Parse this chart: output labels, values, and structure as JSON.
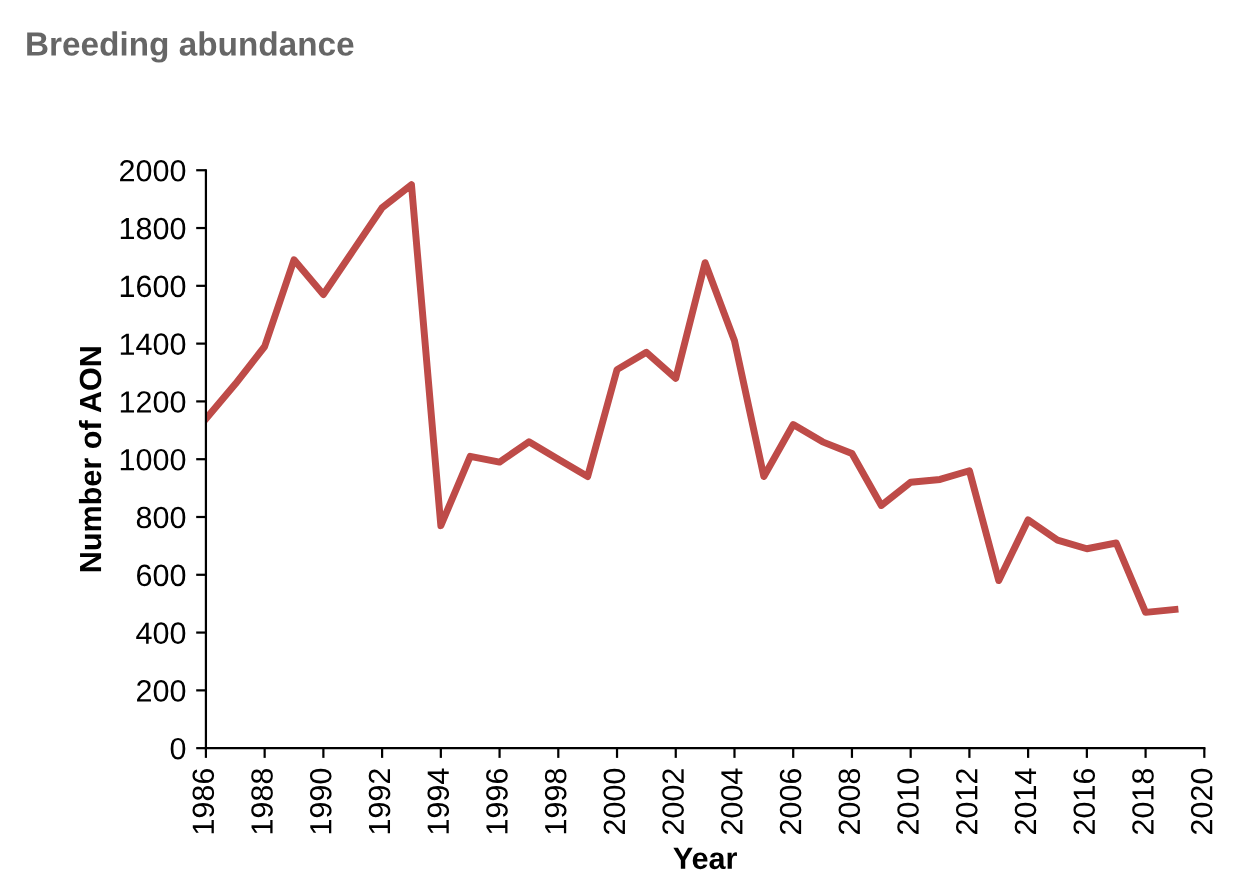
{
  "chart_data": {
    "type": "line",
    "title": "Breeding abundance",
    "xlabel": "Year",
    "ylabel": "Number of AON",
    "x": [
      1986,
      1987,
      1988,
      1989,
      1990,
      1991,
      1992,
      1993,
      1994,
      1995,
      1996,
      1997,
      1998,
      1999,
      2000,
      2001,
      2002,
      2003,
      2004,
      2005,
      2006,
      2007,
      2008,
      2009,
      2010,
      2011,
      2012,
      2013,
      2014,
      2015,
      2016,
      2017,
      2018,
      2019
    ],
    "series": [
      {
        "color": "#be4b48",
        "values": [
          1140,
          1260,
          1390,
          1690,
          1570,
          1720,
          1870,
          1950,
          770,
          1010,
          990,
          1060,
          1000,
          940,
          1310,
          1370,
          1280,
          1680,
          1410,
          940,
          1120,
          1060,
          1020,
          840,
          920,
          930,
          960,
          580,
          790,
          720,
          690,
          710,
          470,
          480
        ]
      }
    ],
    "xlim": [
      1986,
      2020
    ],
    "xticks": [
      1986,
      1988,
      1990,
      1992,
      1994,
      1996,
      1998,
      2000,
      2002,
      2004,
      2006,
      2008,
      2010,
      2012,
      2014,
      2016,
      2018,
      2020
    ],
    "ylim": [
      0,
      2000
    ],
    "yticks": [
      0,
      200,
      400,
      600,
      800,
      1000,
      1200,
      1400,
      1600,
      1800,
      2000
    ],
    "grid": false,
    "legend": false,
    "marker": "none",
    "line_style": "solid"
  }
}
